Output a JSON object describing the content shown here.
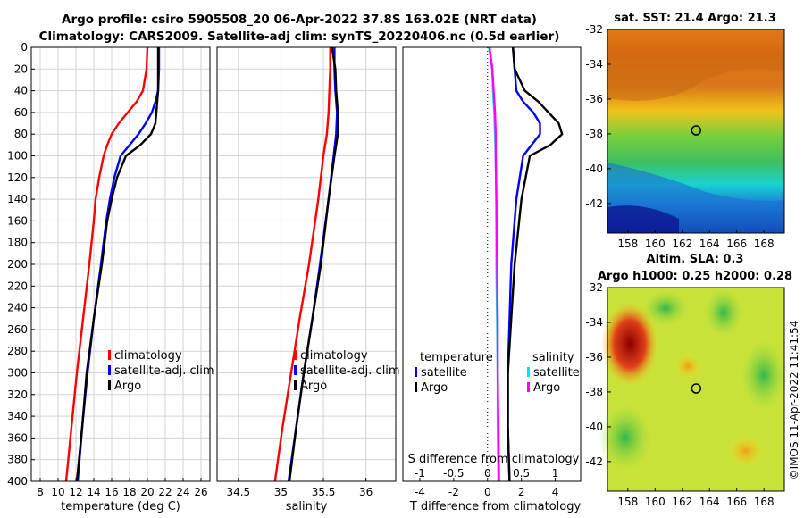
{
  "header": {
    "title_line1": "Argo profile: csiro 5905508_20 06-Apr-2022 37.8S 163.02E (NRT data)",
    "title_line2": "Climatology: CARS2009. Satellite-adj clim: synTS_20220406.nc (0.5d earlier)"
  },
  "watermark": "©IMOS 11-Apr-2022 11:41:54",
  "colors": {
    "climatology": "#ff0000",
    "satellite": "#0000ff",
    "argo": "#000000",
    "s_satellite": "#00e5ee",
    "s_argo": "#ff00ff",
    "grid": "#d3d3d3",
    "marker": "#000000"
  },
  "chart_data": [
    {
      "id": "temperature",
      "type": "line",
      "xlabel": "temperature (deg C)",
      "ylabel": "",
      "xlim": [
        7,
        27
      ],
      "ylim": [
        400,
        0
      ],
      "xticks": [
        8,
        10,
        12,
        14,
        16,
        18,
        20,
        22,
        24,
        26
      ],
      "yticks": [
        0,
        20,
        40,
        60,
        80,
        100,
        120,
        140,
        160,
        180,
        200,
        220,
        240,
        260,
        280,
        300,
        320,
        340,
        360,
        380,
        400
      ],
      "grid": true,
      "legend": [
        "climatology",
        "satellite-adj. clim",
        "Argo"
      ],
      "series": [
        {
          "name": "climatology",
          "color": "#ff0000",
          "depth": [
            0,
            20,
            40,
            50,
            60,
            70,
            80,
            90,
            100,
            120,
            140,
            160,
            200,
            250,
            300,
            350,
            400
          ],
          "values": [
            20.0,
            19.9,
            19.5,
            18.8,
            17.8,
            16.8,
            16.0,
            15.5,
            15.1,
            14.6,
            14.2,
            14.0,
            13.5,
            12.8,
            12.1,
            11.5,
            10.9
          ]
        },
        {
          "name": "satellite-adj. clim",
          "color": "#0000ff",
          "depth": [
            0,
            20,
            40,
            50,
            60,
            70,
            80,
            90,
            100,
            120,
            140,
            160,
            200,
            250,
            300,
            350,
            400
          ],
          "values": [
            21.3,
            21.3,
            21.2,
            20.9,
            20.5,
            19.8,
            19.0,
            18.0,
            17.0,
            16.3,
            15.8,
            15.4,
            14.8,
            14.0,
            13.3,
            12.7,
            12.2
          ]
        },
        {
          "name": "Argo",
          "color": "#000000",
          "depth": [
            0,
            20,
            40,
            50,
            60,
            70,
            80,
            90,
            100,
            120,
            140,
            160,
            200,
            250,
            300,
            350,
            400
          ],
          "values": [
            21.2,
            21.2,
            21.2,
            21.1,
            21.0,
            20.9,
            20.4,
            19.2,
            17.6,
            16.6,
            16.0,
            15.5,
            14.9,
            14.0,
            13.2,
            12.7,
            12.1
          ]
        }
      ]
    },
    {
      "id": "salinity",
      "type": "line",
      "xlabel": "salinity",
      "xlim": [
        34.25,
        36.35
      ],
      "ylim": [
        400,
        0
      ],
      "xticks": [
        34.5,
        35,
        35.5,
        36
      ],
      "grid": true,
      "legend": [
        "climatology",
        "satellite-adj. clim",
        "Argo"
      ],
      "series": [
        {
          "name": "climatology",
          "color": "#ff0000",
          "depth": [
            0,
            20,
            40,
            60,
            80,
            100,
            140,
            200,
            250,
            300,
            350,
            400
          ],
          "values": [
            35.58,
            35.58,
            35.57,
            35.56,
            35.54,
            35.5,
            35.44,
            35.33,
            35.22,
            35.12,
            35.02,
            34.93
          ]
        },
        {
          "name": "satellite-adj. clim",
          "color": "#0000ff",
          "depth": [
            0,
            20,
            40,
            60,
            80,
            100,
            140,
            200,
            250,
            300,
            350,
            400
          ],
          "values": [
            35.63,
            35.63,
            35.64,
            35.66,
            35.65,
            35.62,
            35.56,
            35.46,
            35.37,
            35.27,
            35.18,
            35.09
          ]
        },
        {
          "name": "Argo",
          "color": "#000000",
          "depth": [
            0,
            20,
            40,
            60,
            80,
            100,
            140,
            200,
            250,
            300,
            350,
            400
          ],
          "values": [
            35.6,
            35.64,
            35.65,
            35.67,
            35.67,
            35.63,
            35.56,
            35.47,
            35.37,
            35.27,
            35.18,
            35.1
          ]
        }
      ]
    },
    {
      "id": "difference",
      "type": "line",
      "xlabel": "T difference from climatology",
      "xlabel_top": "S difference from climatology",
      "xlim": [
        -5,
        5.5
      ],
      "ylim": [
        400,
        0
      ],
      "xticks": [
        -4,
        -2,
        0,
        2,
        4
      ],
      "xticks_top": [
        -1,
        -0.5,
        0,
        0.5,
        1
      ],
      "grid": false,
      "legend_temperature_title": "temperature",
      "legend_salinity_title": "salinity",
      "legend_temperature": [
        "satellite",
        "Argo"
      ],
      "legend_salinity": [
        "satellite",
        "Argo"
      ],
      "series": [
        {
          "name": "T satellite",
          "color": "#0000ff",
          "depth": [
            0,
            20,
            40,
            50,
            60,
            70,
            80,
            90,
            100,
            140,
            200,
            250,
            300,
            350,
            400
          ],
          "values": [
            1.5,
            1.6,
            1.7,
            2.1,
            2.7,
            3.1,
            3.1,
            2.6,
            2.1,
            1.7,
            1.4,
            1.3,
            1.2,
            1.2,
            1.3
          ]
        },
        {
          "name": "T Argo",
          "color": "#000000",
          "depth": [
            0,
            20,
            40,
            50,
            60,
            70,
            80,
            90,
            100,
            140,
            200,
            250,
            300,
            350,
            400
          ],
          "values": [
            1.5,
            1.6,
            2.2,
            3.0,
            3.6,
            4.2,
            4.4,
            3.7,
            2.5,
            2.0,
            1.6,
            1.4,
            1.2,
            1.2,
            1.3
          ]
        },
        {
          "name": "S satellite",
          "color": "#00e5ee",
          "depth": [
            0,
            20,
            40,
            60,
            80,
            100,
            140,
            200,
            250,
            300,
            350,
            400
          ],
          "values": [
            0.02,
            0.07,
            0.08,
            0.1,
            0.11,
            0.12,
            0.13,
            0.13,
            0.14,
            0.15,
            0.15,
            0.16
          ]
        },
        {
          "name": "S Argo",
          "color": "#ff00ff",
          "depth": [
            0,
            20,
            40,
            60,
            80,
            100,
            140,
            200,
            250,
            300,
            350,
            400
          ],
          "values": [
            0.03,
            0.07,
            0.09,
            0.11,
            0.12,
            0.12,
            0.13,
            0.14,
            0.15,
            0.15,
            0.16,
            0.17
          ]
        }
      ]
    },
    {
      "id": "sst-map",
      "type": "heatmap",
      "title": "sat. SST: 21.4  Argo: 21.3",
      "xlim": [
        156.5,
        169.5
      ],
      "ylim": [
        -43.7,
        -32
      ],
      "xticks": [
        158,
        160,
        162,
        164,
        166,
        168
      ],
      "yticks": [
        -32,
        -34,
        -36,
        -38,
        -40,
        -42
      ],
      "marker": {
        "lon": 163.02,
        "lat": -37.8
      }
    },
    {
      "id": "sla-map",
      "type": "heatmap",
      "title": "Altim. SLA: 0.3",
      "subtitle": "Argo h1000: 0.25 h2000: 0.28",
      "xlim": [
        156.5,
        169.5
      ],
      "ylim": [
        -43.7,
        -32
      ],
      "xticks": [
        158,
        160,
        162,
        164,
        166,
        168
      ],
      "yticks": [
        -32,
        -34,
        -36,
        -38,
        -40,
        -42
      ],
      "marker": {
        "lon": 163.02,
        "lat": -37.8
      }
    }
  ]
}
